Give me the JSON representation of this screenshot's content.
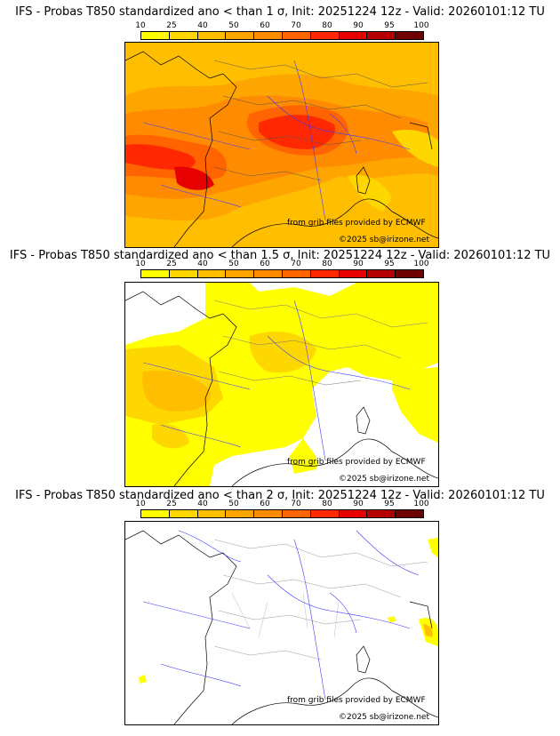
{
  "colorbar": {
    "ticks": [
      "10",
      "25",
      "40",
      "50",
      "60",
      "70",
      "80",
      "90",
      "95",
      "100"
    ],
    "colors": [
      "#ffff00",
      "#ffd700",
      "#ffbf00",
      "#ffa500",
      "#ff8c00",
      "#ff6400",
      "#ff2800",
      "#e60000",
      "#b40000",
      "#6e0000"
    ]
  },
  "panels": [
    {
      "title": "IFS - Probas T850  standardized ano < than 1 σ, Init: 20251224 12z - Valid: 20260101:12 TU",
      "credit_source": "from grib files provided by ECMWF",
      "credit_copyright": "©2025 sb@irizone.net"
    },
    {
      "title": "IFS - Probas T850  standardized ano < than 1.5 σ, Init: 20251224 12z - Valid: 20260101:12 TU",
      "credit_source": "from grib files provided by ECMWF",
      "credit_copyright": "©2025 sb@irizone.net"
    },
    {
      "title": "IFS - Probas T850  standardized ano < than 2 σ, Init: 20251224 12z - Valid: 20260101:12 TU",
      "credit_source": "from grib files provided by ECMWF",
      "credit_copyright": "©2025 sb@irizone.net"
    }
  ]
}
